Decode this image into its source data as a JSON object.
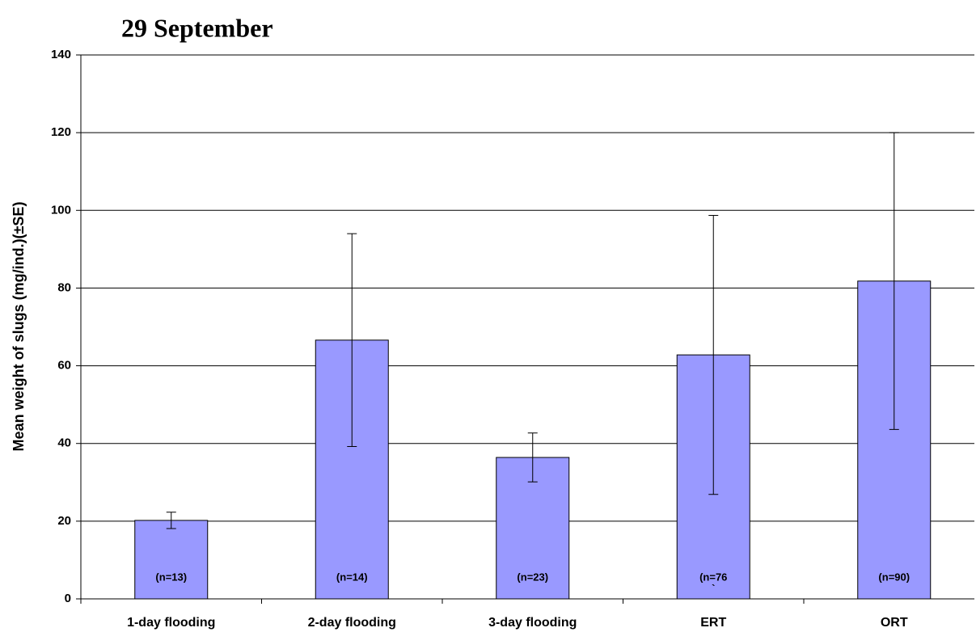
{
  "chart_data": {
    "type": "bar",
    "title": "29 September",
    "y_label": "Mean weight of slugs (mg/ind.)(±SE)",
    "categories": [
      "1-day flooding",
      "2-day flooding",
      "3-day flooding",
      "ERT",
      "ORT"
    ],
    "values": [
      20.2,
      66.6,
      36.4,
      62.8,
      81.8
    ],
    "errors": [
      2.1,
      27.4,
      6.3,
      35.9,
      38.2
    ],
    "annotations": [
      [
        "(n=13)"
      ],
      [
        "(n=14)"
      ],
      [
        "(n=23)"
      ],
      [
        "(n=76",
        "`"
      ],
      [
        "(n=90)"
      ]
    ],
    "color": "#9999ff",
    "ylim": [
      0,
      140
    ],
    "yticks": [
      0,
      20,
      40,
      60,
      80,
      100,
      120,
      140
    ],
    "grid": true
  }
}
